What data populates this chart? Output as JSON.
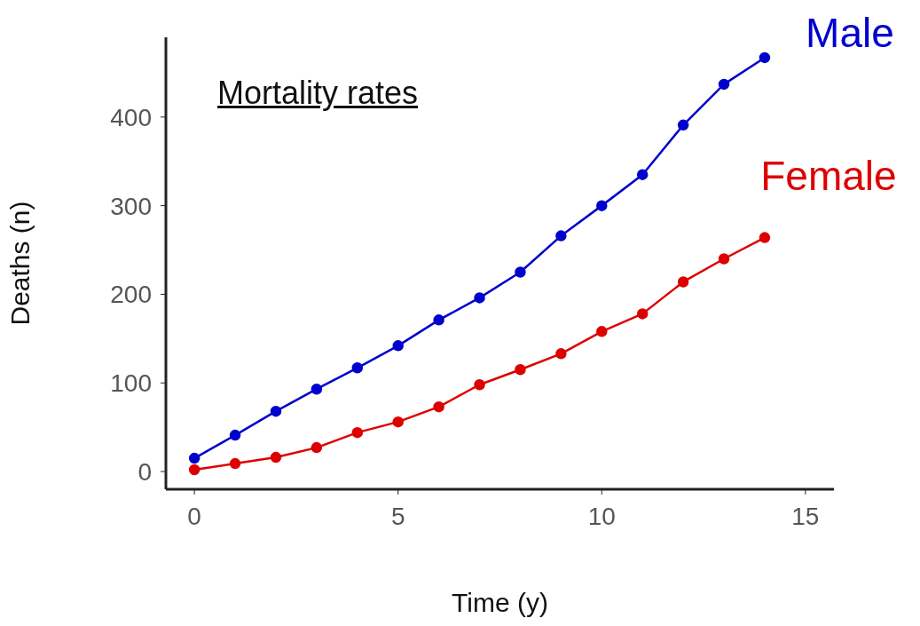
{
  "chart_data": {
    "type": "line",
    "title": "Mortality rates",
    "xlabel": "Time (y)",
    "ylabel": "Deaths (n)",
    "x": [
      0,
      1,
      2,
      3,
      4,
      5,
      6,
      7,
      8,
      9,
      10,
      11,
      12,
      13,
      14
    ],
    "series": [
      {
        "name": "Male",
        "color": "#0000cc",
        "values": [
          15,
          41,
          68,
          93,
          117,
          142,
          171,
          196,
          225,
          266,
          300,
          335,
          391,
          437,
          467
        ]
      },
      {
        "name": "Female",
        "color": "#dd0000",
        "values": [
          2,
          9,
          16,
          27,
          44,
          56,
          73,
          98,
          115,
          133,
          158,
          178,
          214,
          240,
          264
        ]
      }
    ],
    "xlim": [
      -0.7,
      15.7
    ],
    "xticks": [
      0,
      5,
      10,
      15
    ],
    "ylim": [
      -20,
      490
    ],
    "yticks": [
      0,
      100,
      200,
      300,
      400
    ],
    "grid": false,
    "legend": false,
    "marker": "circle",
    "line_style": "solid"
  }
}
